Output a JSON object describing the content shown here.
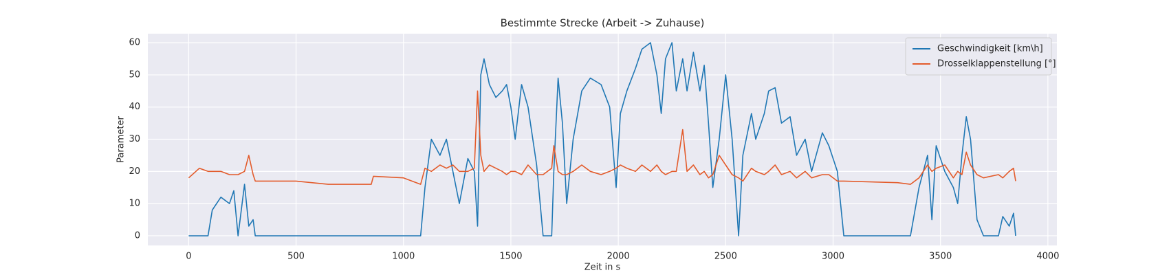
{
  "chart_data": {
    "type": "line",
    "title": "Bestimmte Strecke (Arbeit -> Zuhause)",
    "x_label": "Zeit in s",
    "y_label": "Parameter",
    "x": [
      0,
      50,
      90,
      110,
      150,
      190,
      210,
      230,
      260,
      280,
      300,
      310,
      500,
      650,
      850,
      860,
      1000,
      1080,
      1100,
      1130,
      1170,
      1200,
      1230,
      1260,
      1300,
      1330,
      1345,
      1360,
      1375,
      1400,
      1430,
      1460,
      1480,
      1500,
      1520,
      1550,
      1580,
      1620,
      1650,
      1690,
      1700,
      1720,
      1740,
      1760,
      1790,
      1830,
      1870,
      1920,
      1960,
      1990,
      2010,
      2040,
      2080,
      2110,
      2150,
      2180,
      2200,
      2220,
      2250,
      2270,
      2300,
      2320,
      2350,
      2380,
      2400,
      2420,
      2440,
      2470,
      2500,
      2530,
      2560,
      2580,
      2620,
      2640,
      2680,
      2700,
      2730,
      2760,
      2800,
      2830,
      2870,
      2900,
      2950,
      2980,
      3020,
      3050,
      3300,
      3360,
      3400,
      3440,
      3460,
      3480,
      3520,
      3560,
      3580,
      3600,
      3620,
      3640,
      3670,
      3700,
      3770,
      3790,
      3820,
      3840,
      3850
    ],
    "series": [
      {
        "name": "Geschwindigkeit [km\\h]",
        "color": "#1f77b4",
        "values": [
          0,
          0,
          0,
          8,
          12,
          10,
          14,
          0,
          16,
          3,
          5,
          0,
          0,
          0,
          0,
          0,
          0,
          0,
          15,
          30,
          25,
          30,
          20,
          10,
          24,
          20,
          3,
          50,
          55,
          47,
          43,
          45,
          47,
          40,
          30,
          47,
          40,
          22,
          0,
          0,
          20,
          49,
          35,
          10,
          30,
          45,
          49,
          47,
          40,
          15,
          38,
          45,
          52,
          58,
          60,
          50,
          38,
          55,
          60,
          45,
          55,
          45,
          57,
          45,
          53,
          35,
          15,
          30,
          50,
          30,
          0,
          25,
          38,
          30,
          38,
          45,
          46,
          35,
          37,
          25,
          30,
          20,
          32,
          28,
          20,
          0,
          0,
          0,
          15,
          25,
          5,
          28,
          20,
          15,
          10,
          25,
          37,
          30,
          5,
          0,
          0,
          6,
          3,
          7,
          0
        ]
      },
      {
        "name": "Drosselklappenstellung [°]",
        "color": "#e35b2b",
        "values": [
          18,
          21,
          20,
          20,
          20,
          19,
          19,
          19,
          20,
          25,
          19,
          17,
          17,
          16,
          16,
          18.5,
          18,
          16,
          21,
          20,
          22,
          21,
          22,
          20,
          20,
          21,
          45,
          25,
          20,
          22,
          21,
          20,
          19,
          20,
          20,
          19,
          22,
          19,
          19,
          21,
          28,
          20,
          19,
          19,
          20,
          22,
          20,
          19,
          20,
          21,
          22,
          21,
          20,
          22,
          20,
          22,
          20,
          19,
          20,
          20,
          33,
          20,
          22,
          19,
          20,
          18,
          19,
          25,
          22,
          19,
          18,
          17,
          21,
          20,
          19,
          20,
          22,
          19,
          20,
          18,
          20,
          18,
          19,
          19,
          17,
          17,
          16.5,
          16,
          18,
          22,
          20,
          21,
          22,
          18,
          20,
          19,
          26,
          22,
          19,
          18,
          19,
          18,
          20,
          21,
          17
        ]
      }
    ],
    "xlim": [
      -190,
      4042
    ],
    "ylim": [
      -3,
      62.8
    ],
    "xticks": [
      0,
      500,
      1000,
      1500,
      2000,
      2500,
      3000,
      3500,
      4000
    ],
    "yticks": [
      0,
      10,
      20,
      30,
      40,
      50,
      60
    ],
    "grid": true,
    "legend": "upper right"
  }
}
